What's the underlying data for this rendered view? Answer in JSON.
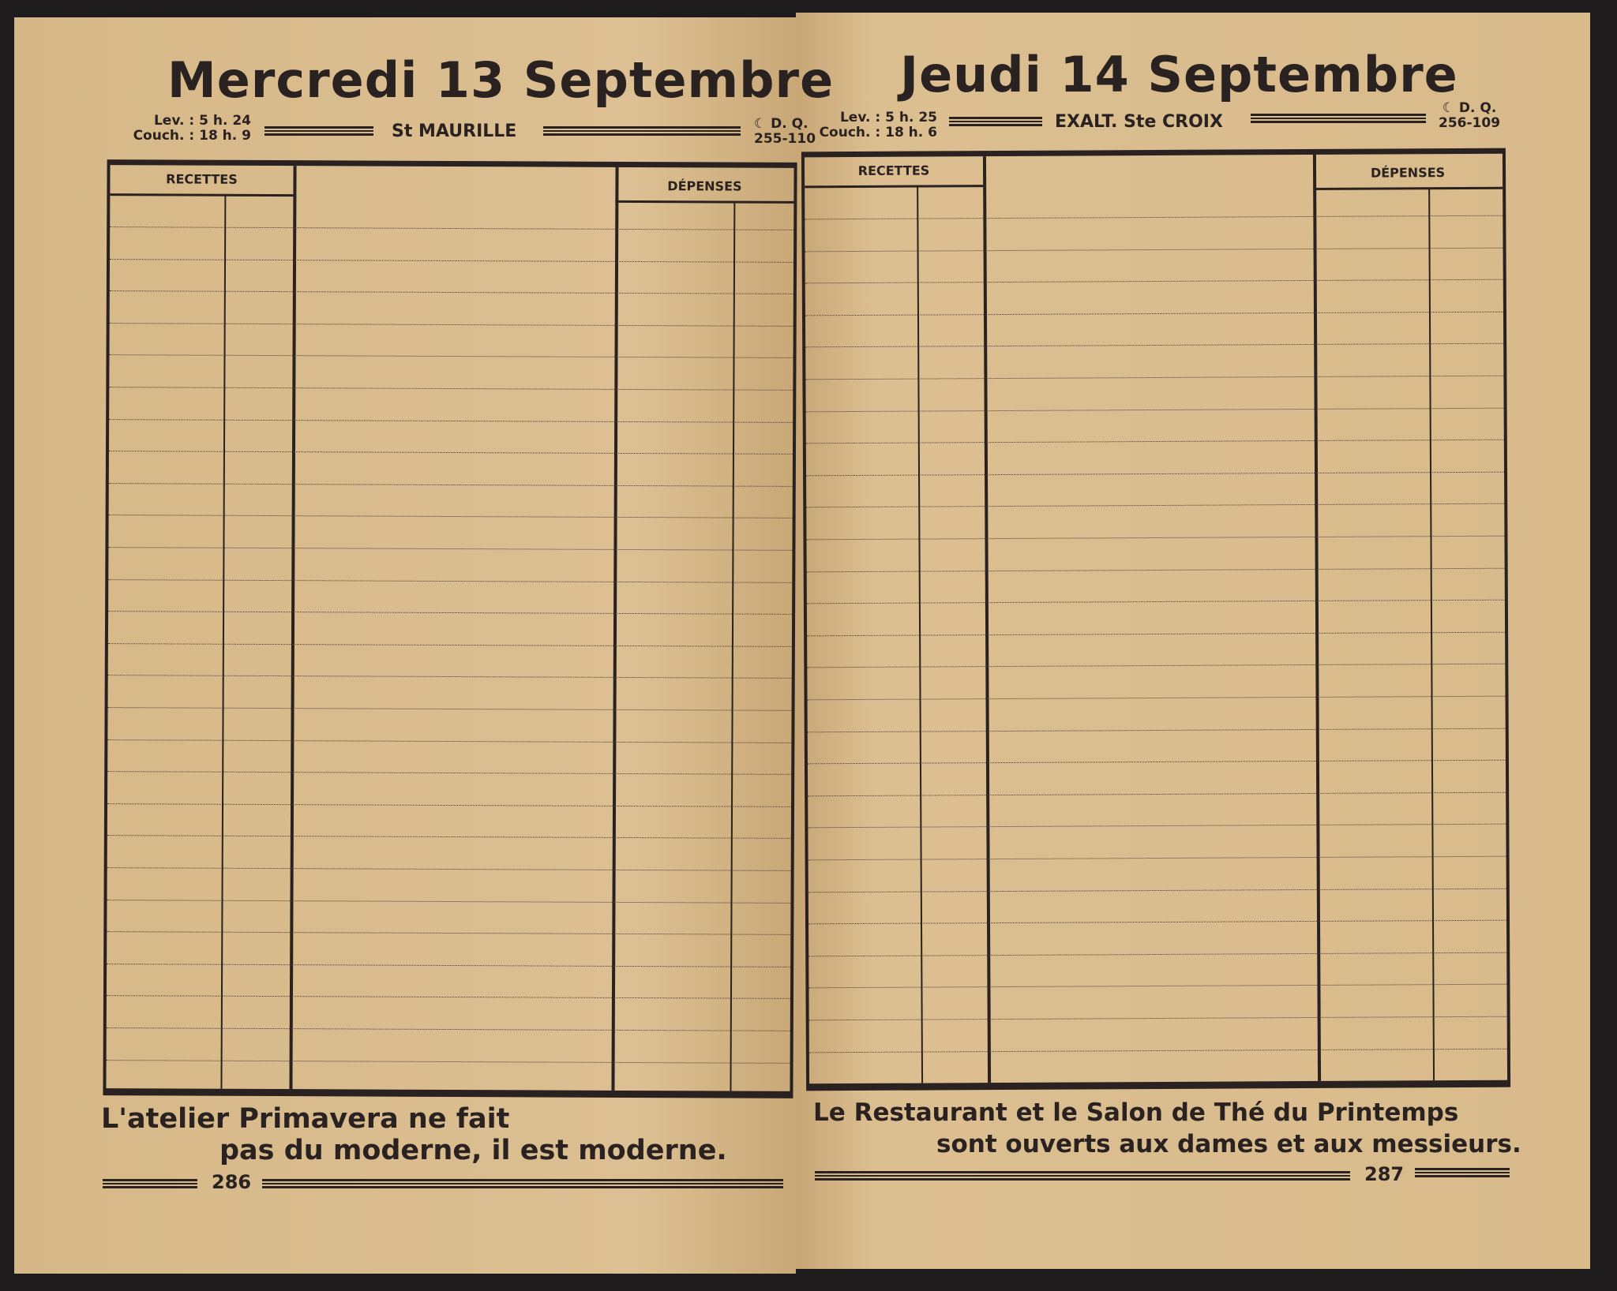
{
  "left_page": {
    "title": "Mercredi 13 Septembre",
    "sun_rise": "Lev. :  5 h. 24",
    "sun_set": "Couch. : 18 h.  9",
    "saint": "St MAURILLE",
    "moon": "☾ D. Q.",
    "day_numbers": "255-110",
    "receipts_header": "RECETTES",
    "expenses_header": "DÉPENSES",
    "footer_line1": "L'atelier Primavera ne fait",
    "footer_line2": "pas du moderne, il est moderne.",
    "page_number": "286"
  },
  "right_page": {
    "title": "Jeudi 14 Septembre",
    "sun_rise": "Lev. :  5 h. 25",
    "sun_set": "Couch. : 18 h.  6",
    "saint": "EXALT. Ste CROIX",
    "moon": "☾ D. Q.",
    "day_numbers": "256-109",
    "receipts_header": "RECETTES",
    "expenses_header": "DÉPENSES",
    "footer_line1": "Le Restaurant et le Salon de Thé du Printemps",
    "footer_line2": "sont ouverts aux dames et aux messieurs.",
    "page_number": "287"
  }
}
